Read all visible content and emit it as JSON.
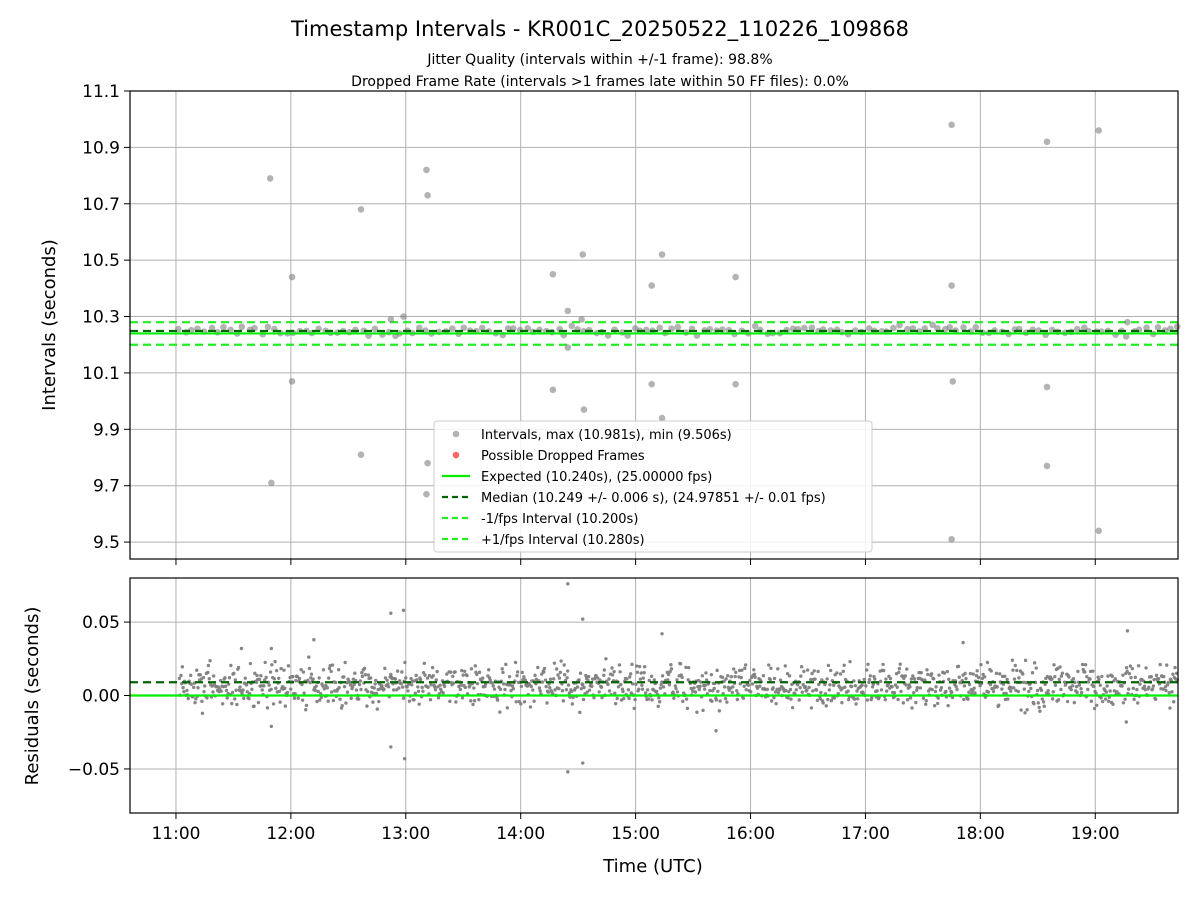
{
  "title": "Timestamp Intervals - KR001C_20250522_110226_109868",
  "subtitle_lines": [
    "Jitter Quality (intervals within +/-1 frame): 98.8%",
    "Dropped Frame Rate (intervals >1 frames late within 50 FF files): 0.0%"
  ],
  "xlabel": "Time (UTC)",
  "colors": {
    "points": "#808080",
    "expected": "#00ee00",
    "median": "#006400",
    "interval": "#22ee22",
    "dropped": "#ff0000",
    "grid": "#b0b0b0"
  },
  "chart_data": [
    {
      "type": "scatter",
      "ylabel": "Intervals (seconds)",
      "x_unit": "hour of day (UTC)",
      "xlim": [
        10.6,
        19.72
      ],
      "xticks": [
        11,
        12,
        13,
        14,
        15,
        16,
        17,
        18,
        19
      ],
      "xtick_labels": [
        "11:00",
        "12:00",
        "13:00",
        "14:00",
        "15:00",
        "16:00",
        "17:00",
        "18:00",
        "19:00"
      ],
      "ylim": [
        9.44,
        11.1
      ],
      "yticks": [
        9.5,
        9.7,
        9.9,
        10.1,
        10.3,
        10.5,
        10.7,
        10.9,
        11.1
      ],
      "ytick_labels": [
        "9.5",
        "9.7",
        "9.9",
        "10.1",
        "10.3",
        "10.5",
        "10.7",
        "10.9",
        "11.1"
      ],
      "grid": true,
      "legend_position": "bottom-center",
      "legend": [
        {
          "label": "Intervals, max (10.981s), min (9.506s)",
          "kind": "marker",
          "color": "#808080"
        },
        {
          "label": "Possible Dropped Frames",
          "kind": "marker",
          "color": "#ff0000"
        },
        {
          "label": "Expected (10.240s), (25.00000 fps)",
          "kind": "solid",
          "color": "#00ee00"
        },
        {
          "label": "Median (10.249 +/- 0.006 s), (24.97851 +/- 0.01 fps)",
          "kind": "dashed",
          "color": "#006400"
        },
        {
          "label": "-1/fps Interval (10.200s)",
          "kind": "dashed",
          "color": "#22ee22"
        },
        {
          "label": "+1/fps Interval (10.280s)",
          "kind": "dashed",
          "color": "#22ee22"
        }
      ],
      "reference_lines": {
        "expected": 10.24,
        "median": 10.249,
        "minus_interval": 10.2,
        "plus_interval": 10.28
      },
      "band": {
        "center": 10.249,
        "spread": 0.012,
        "x_start": 11.03,
        "x_end": 19.72,
        "step": 0.055
      },
      "outliers": [
        [
          11.82,
          10.79
        ],
        [
          11.83,
          9.71
        ],
        [
          12.01,
          10.44
        ],
        [
          12.01,
          10.07
        ],
        [
          12.61,
          10.68
        ],
        [
          12.61,
          9.81
        ],
        [
          12.87,
          10.29
        ],
        [
          12.98,
          10.3
        ],
        [
          13.18,
          10.82
        ],
        [
          13.19,
          10.73
        ],
        [
          13.19,
          9.78
        ],
        [
          13.18,
          9.67
        ],
        [
          14.28,
          10.45
        ],
        [
          14.28,
          10.04
        ],
        [
          14.41,
          10.32
        ],
        [
          14.41,
          10.19
        ],
        [
          14.54,
          10.52
        ],
        [
          14.55,
          9.97
        ],
        [
          14.53,
          10.29
        ],
        [
          15.14,
          10.41
        ],
        [
          15.14,
          10.06
        ],
        [
          15.23,
          10.52
        ],
        [
          15.23,
          9.94
        ],
        [
          15.87,
          10.44
        ],
        [
          15.87,
          10.06
        ],
        [
          17.75,
          10.98
        ],
        [
          17.75,
          10.41
        ],
        [
          17.76,
          10.07
        ],
        [
          17.75,
          9.51
        ],
        [
          18.58,
          10.92
        ],
        [
          18.58,
          10.05
        ],
        [
          18.58,
          9.77
        ],
        [
          19.03,
          10.96
        ],
        [
          19.03,
          9.54
        ],
        [
          19.28,
          10.28
        ]
      ]
    },
    {
      "type": "scatter",
      "ylabel": "Residuals (seconds)",
      "x_unit": "hour of day (UTC)",
      "xlim": [
        10.6,
        19.72
      ],
      "xticks": [
        11,
        12,
        13,
        14,
        15,
        16,
        17,
        18,
        19
      ],
      "xtick_labels": [
        "11:00",
        "12:00",
        "13:00",
        "14:00",
        "15:00",
        "16:00",
        "17:00",
        "18:00",
        "19:00"
      ],
      "ylim": [
        -0.08,
        0.08
      ],
      "yticks": [
        -0.05,
        0.0,
        0.05
      ],
      "ytick_labels": [
        "−0.05",
        "0.00",
        "0.05"
      ],
      "grid": true,
      "reference_lines": {
        "expected": 0.0,
        "median": 0.009
      },
      "band": {
        "center": 0.007,
        "spread": 0.011,
        "x_start": 11.03,
        "x_end": 19.72,
        "step": 0.0065
      },
      "outliers": [
        [
          12.87,
          0.056
        ],
        [
          12.98,
          0.058
        ],
        [
          12.87,
          -0.035
        ],
        [
          12.99,
          -0.043
        ],
        [
          14.41,
          0.076
        ],
        [
          14.41,
          -0.052
        ],
        [
          14.54,
          0.052
        ],
        [
          14.54,
          -0.046
        ],
        [
          15.23,
          0.042
        ],
        [
          12.2,
          0.038
        ],
        [
          11.57,
          0.032
        ],
        [
          11.83,
          0.032
        ],
        [
          17.85,
          0.036
        ],
        [
          19.28,
          0.044
        ],
        [
          15.7,
          -0.024
        ],
        [
          19.27,
          -0.018
        ],
        [
          11.83,
          -0.021
        ]
      ]
    }
  ]
}
